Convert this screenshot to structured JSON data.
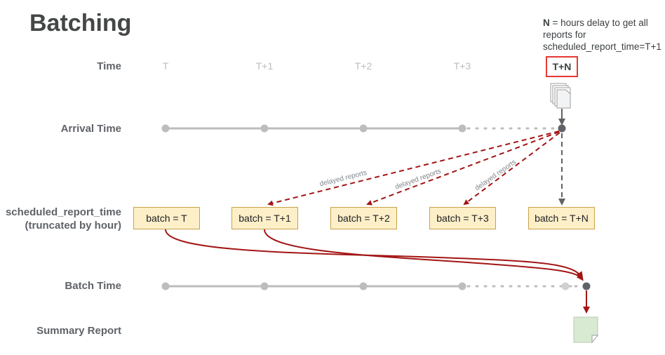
{
  "title": "Batching",
  "note": {
    "emphasis": "N",
    "text": " = hours delay to get all reports for scheduled_report_time=T+1"
  },
  "rows": {
    "time": "Time",
    "arrival": "Arrival Time",
    "scheduled_line1": "scheduled_report_time",
    "scheduled_line2": "(truncated by hour)",
    "batch_time": "Batch Time",
    "summary": "Summary Report"
  },
  "ticks": [
    "T",
    "T+1",
    "T+2",
    "T+3"
  ],
  "tick_n": "T+N",
  "batches": [
    "batch = T",
    "batch = T+1",
    "batch = T+2",
    "batch = T+3",
    "batch = T+N"
  ],
  "delayed_label": "delayed reports",
  "colors": {
    "timeline": "#bdbdbd",
    "node_dark": "#5f6368",
    "delayed_arrow": "#a31515",
    "batch_fill": "#fdefc8",
    "summary_fill": "#d9ead3",
    "highlight_box": "#e53935"
  }
}
